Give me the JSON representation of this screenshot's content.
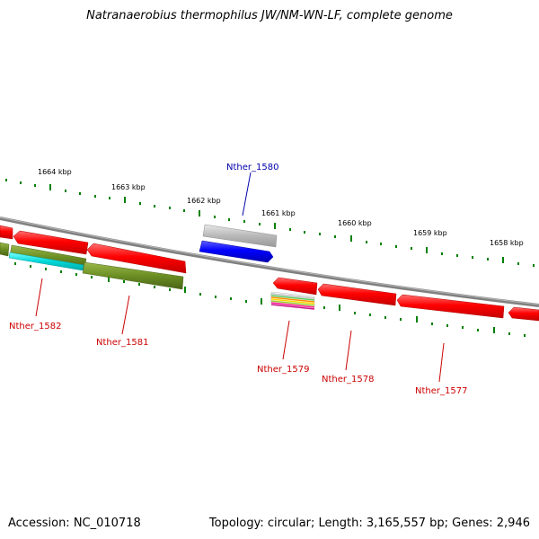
{
  "title": "Natranaerobius thermophilus JW/NM-WN-LF, complete genome",
  "footer": {
    "accession": "Accession: NC_010718",
    "summary": "Topology: circular; Length: 3,165,557 bp; Genes: 2,946"
  },
  "scale_ticks": [
    "1664 kbp",
    "1663 kbp",
    "1662 kbp",
    "1661 kbp",
    "1660 kbp",
    "1659 kbp",
    "1658 kbp"
  ],
  "genes": [
    {
      "name": "Nther_1580",
      "color": "#0000aa"
    },
    {
      "name": "Nther_1582",
      "color": "#cc0000"
    },
    {
      "name": "Nther_1581",
      "color": "#cc0000"
    },
    {
      "name": "Nther_1579",
      "color": "#cc0000"
    },
    {
      "name": "Nther_1578",
      "color": "#cc0000"
    },
    {
      "name": "Nther_1577",
      "color": "#cc0000"
    }
  ],
  "colors": {
    "backbone": "#808080",
    "forward_gene": "#ff0000",
    "selected_gene": "#0000ff",
    "tick": "#008000",
    "olive_feature": "#6b8e23",
    "cyan_feature": "#00cccc",
    "grey_feature": "#b0b0b0"
  }
}
